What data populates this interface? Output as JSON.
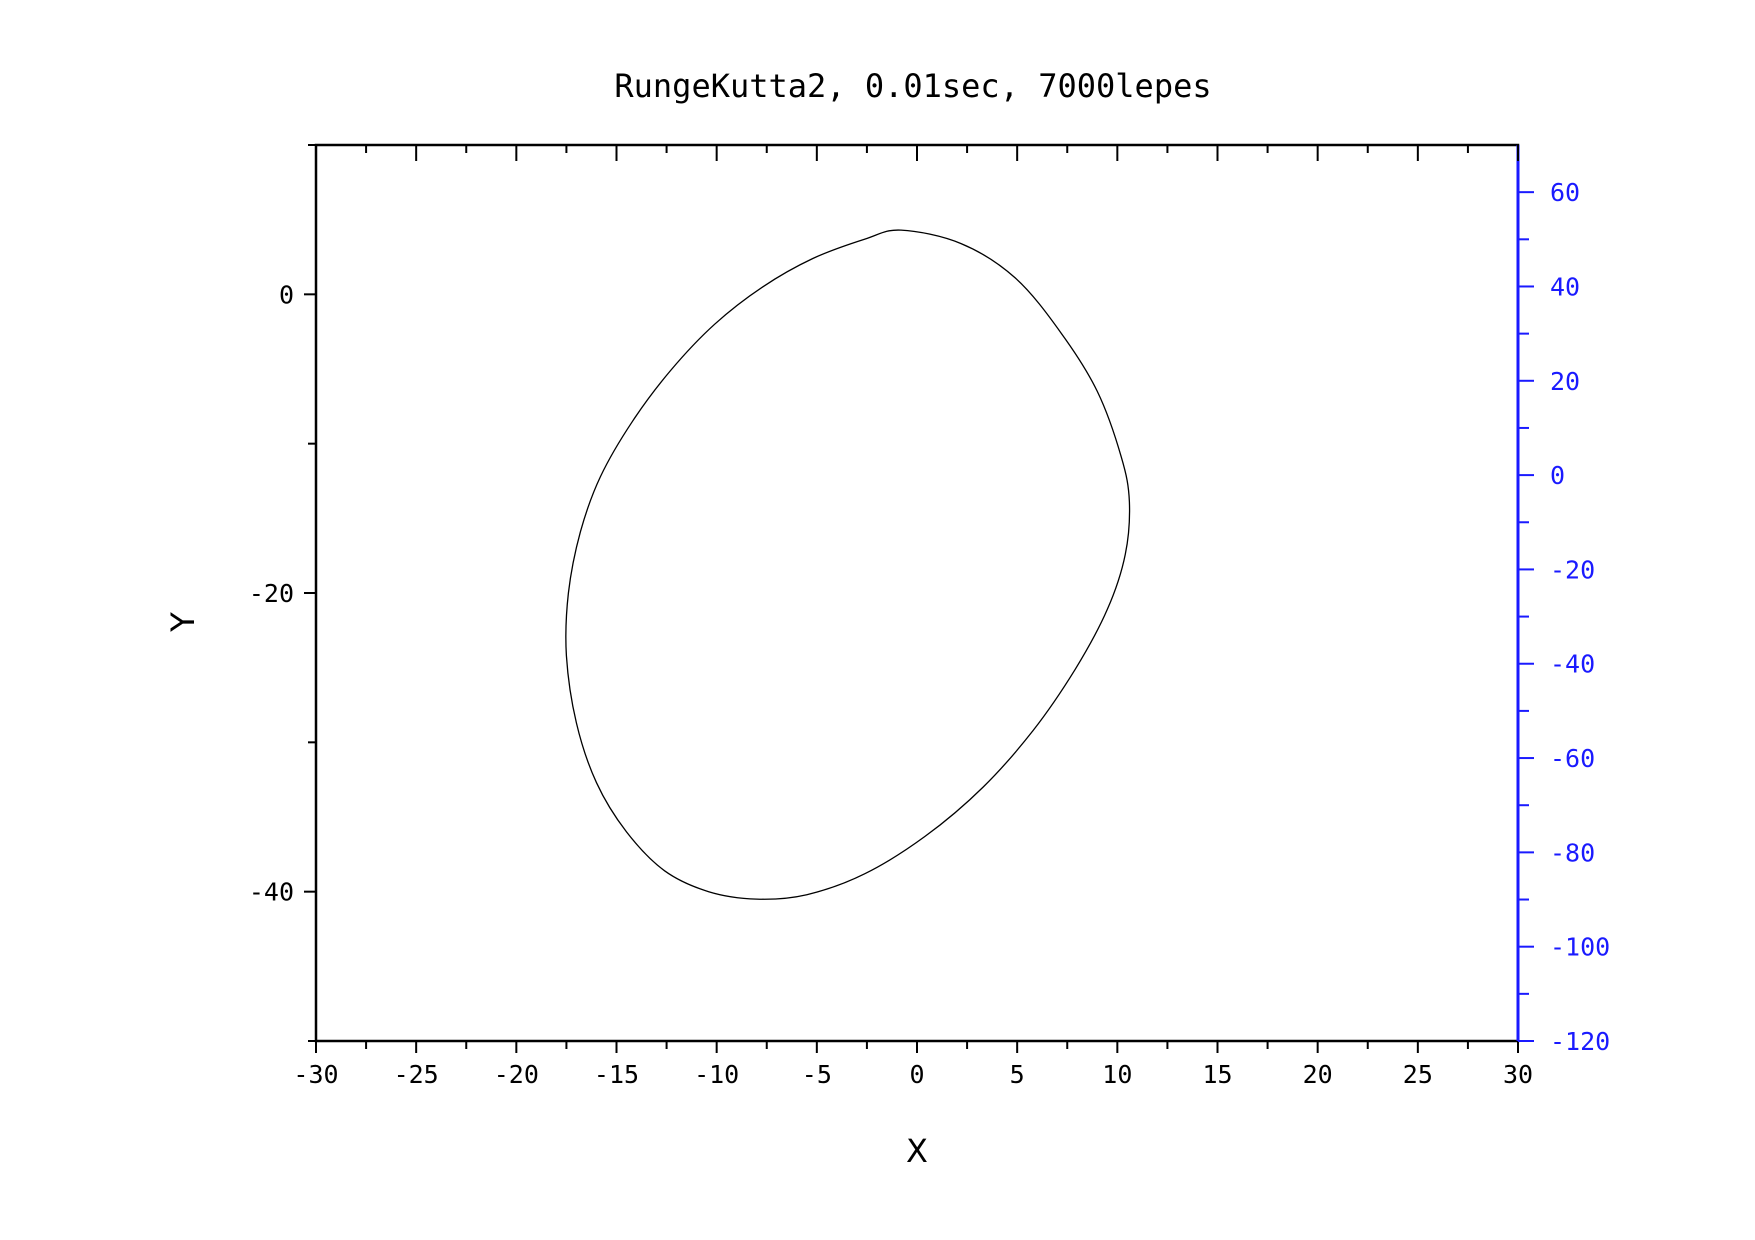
{
  "chart_data": {
    "type": "line",
    "title": "RungeKutta2, 0.01sec, 7000lepes",
    "xlabel": "X",
    "ylabel": "Y",
    "xlim": [
      -30,
      30
    ],
    "ylim": [
      -50,
      10
    ],
    "y2lim": [
      -120,
      70
    ],
    "x_ticks": [
      -30,
      -25,
      -20,
      -15,
      -10,
      -5,
      0,
      5,
      10,
      15,
      20,
      25,
      30
    ],
    "y_ticks": [
      0,
      -20,
      -40
    ],
    "y2_ticks": [
      60,
      40,
      20,
      0,
      -20,
      -40,
      -60,
      -80,
      -100,
      -120
    ],
    "right_axis_color": "#1a1aff",
    "line_color": "#000000",
    "grid": false,
    "series": [
      {
        "x": [
          -0.8,
          2.2,
          4.9,
          7.2,
          9.0,
          10.2,
          10.6,
          10.4,
          9.5,
          7.9,
          5.8,
          3.3,
          0.4,
          -2.6,
          -5.5,
          -8.0,
          -10.4,
          -12.6,
          -14.5,
          -16.0,
          -17.0,
          -17.5,
          -17.4,
          -16.8,
          -15.8,
          -14.2,
          -12.3,
          -10.1,
          -7.7,
          -5.2,
          -2.6,
          -0.8
        ],
        "y": [
          4.3,
          3.4,
          1.1,
          -2.6,
          -6.5,
          -10.9,
          -13.9,
          -17.4,
          -21.1,
          -25.1,
          -29.2,
          -33.0,
          -36.3,
          -38.8,
          -40.2,
          -40.5,
          -40.0,
          -38.6,
          -36.0,
          -32.7,
          -28.7,
          -24.2,
          -20.0,
          -15.9,
          -12.2,
          -8.5,
          -5.1,
          -2.0,
          0.5,
          2.4,
          3.7,
          4.3
        ]
      }
    ]
  }
}
